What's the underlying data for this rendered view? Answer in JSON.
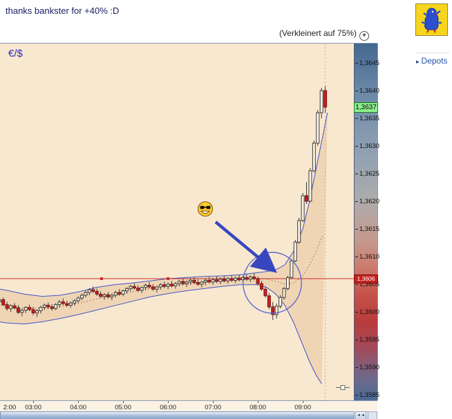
{
  "post": {
    "title": "thanks bankster for +40% :D"
  },
  "chart": {
    "zoom_note": "(Verkleinert auf 75%)",
    "zoom_icon_glyph": "+",
    "symbol": "€/$",
    "current_price_label": "1,3637",
    "hline_price_label": "1,3606"
  },
  "sidebar": {
    "depots_label": "Depots",
    "arrow_glyph": "▸"
  },
  "scrollbar": {
    "left_button_glyph": "◄◄",
    "right_button_glyph": "►►"
  },
  "chart_data": {
    "type": "candlestick",
    "title": "€/$",
    "base_price": 1.36,
    "pip_size": 0.0001,
    "interval_minutes": 5,
    "first_candle_hour": 2.0,
    "y_axis": {
      "min_label": "1,3585",
      "max_label": "1,3645",
      "labels": [
        {
          "text": "1,3645",
          "pips": 45
        },
        {
          "text": "1,3640",
          "pips": 40
        },
        {
          "text": "1,3635",
          "pips": 35
        },
        {
          "text": "1,3630",
          "pips": 30
        },
        {
          "text": "1,3625",
          "pips": 25
        },
        {
          "text": "1,3620",
          "pips": 20
        },
        {
          "text": "1,3615",
          "pips": 15
        },
        {
          "text": "1,3610",
          "pips": 10
        },
        {
          "text": "1,3605",
          "pips": 5
        },
        {
          "text": "1,3600",
          "pips": 0
        },
        {
          "text": "1,3595",
          "pips": -5
        },
        {
          "text": "1,3590",
          "pips": -10
        },
        {
          "text": "1,3585",
          "pips": -15
        }
      ]
    },
    "x_axis": {
      "labels": [
        {
          "text": "2:00",
          "hour": 2
        },
        {
          "text": "03:00",
          "hour": 3
        },
        {
          "text": "04:00",
          "hour": 4
        },
        {
          "text": "05:00",
          "hour": 5
        },
        {
          "text": "06:00",
          "hour": 6
        },
        {
          "text": "07:00",
          "hour": 7
        },
        {
          "text": "08:00",
          "hour": 8
        },
        {
          "text": "09:00",
          "hour": 9
        }
      ]
    },
    "current_price": {
      "label": "1,3637",
      "pips": 37
    },
    "hline": {
      "label": "1,3606",
      "pips": 6,
      "markers_hours": [
        4.52,
        6.0
      ]
    },
    "vline_hour": 9.5,
    "candles_format": "[open,high,low,close] in pips relative to base_price 1.3600",
    "candles": [
      [
        3.5,
        4.2,
        2.8,
        3.0
      ],
      [
        3.0,
        3.4,
        2.2,
        2.5
      ],
      [
        2.5,
        2.8,
        1.5,
        1.8
      ],
      [
        1.8,
        2.5,
        1.2,
        2.2
      ],
      [
        2.2,
        2.6,
        1.0,
        1.3
      ],
      [
        1.3,
        1.8,
        0.2,
        0.6
      ],
      [
        0.6,
        1.4,
        0.0,
        1.1
      ],
      [
        1.1,
        1.6,
        0.4,
        0.7
      ],
      [
        0.7,
        1.2,
        -0.4,
        -0.1
      ],
      [
        -0.1,
        0.6,
        -0.8,
        0.3
      ],
      [
        0.3,
        1.0,
        -0.2,
        0.8
      ],
      [
        0.8,
        1.3,
        0.1,
        0.4
      ],
      [
        0.4,
        0.9,
        -0.6,
        -0.2
      ],
      [
        -0.2,
        0.5,
        -0.9,
        0.2
      ],
      [
        0.2,
        1.1,
        -0.3,
        0.8
      ],
      [
        0.8,
        1.5,
        0.3,
        1.2
      ],
      [
        1.2,
        1.7,
        0.5,
        0.9
      ],
      [
        0.9,
        1.4,
        0.2,
        0.6
      ],
      [
        0.6,
        1.6,
        0.3,
        1.3
      ],
      [
        1.3,
        2.1,
        0.8,
        1.8
      ],
      [
        1.8,
        2.4,
        1.2,
        1.5
      ],
      [
        1.5,
        2.0,
        0.9,
        1.2
      ],
      [
        1.2,
        1.9,
        0.7,
        1.6
      ],
      [
        1.6,
        2.3,
        1.1,
        2.0
      ],
      [
        2.0,
        2.8,
        1.6,
        2.5
      ],
      [
        2.5,
        3.3,
        2.1,
        3.0
      ],
      [
        3.0,
        3.8,
        2.6,
        3.5
      ],
      [
        3.5,
        4.3,
        3.0,
        4.0
      ],
      [
        4.0,
        4.6,
        3.4,
        3.7
      ],
      [
        3.7,
        4.2,
        2.9,
        3.2
      ],
      [
        3.2,
        3.7,
        2.5,
        2.8
      ],
      [
        2.8,
        3.4,
        2.2,
        3.1
      ],
      [
        3.1,
        3.6,
        2.4,
        2.7
      ],
      [
        2.7,
        3.3,
        2.1,
        3.0
      ],
      [
        3.0,
        3.8,
        2.6,
        3.5
      ],
      [
        3.5,
        4.1,
        2.9,
        3.2
      ],
      [
        3.2,
        4.0,
        2.8,
        3.8
      ],
      [
        3.8,
        4.5,
        3.3,
        4.2
      ],
      [
        4.2,
        4.9,
        3.7,
        4.6
      ],
      [
        4.6,
        5.2,
        4.0,
        4.3
      ],
      [
        4.3,
        4.8,
        3.6,
        3.9
      ],
      [
        3.9,
        4.6,
        3.4,
        4.4
      ],
      [
        4.4,
        5.1,
        3.9,
        4.8
      ],
      [
        4.8,
        5.4,
        4.2,
        4.5
      ],
      [
        4.5,
        5.0,
        3.8,
        4.1
      ],
      [
        4.1,
        4.7,
        3.5,
        4.5
      ],
      [
        4.5,
        5.2,
        4.0,
        4.9
      ],
      [
        4.9,
        5.5,
        4.3,
        4.6
      ],
      [
        4.6,
        5.3,
        4.1,
        5.0
      ],
      [
        5.0,
        5.6,
        4.4,
        4.7
      ],
      [
        4.7,
        5.4,
        4.2,
        5.1
      ],
      [
        5.1,
        5.8,
        4.6,
        5.5
      ],
      [
        5.5,
        6.0,
        4.8,
        5.1
      ],
      [
        5.1,
        5.7,
        4.5,
        5.4
      ],
      [
        5.4,
        6.1,
        4.9,
        5.7
      ],
      [
        5.7,
        6.2,
        5.0,
        5.3
      ],
      [
        5.3,
        5.9,
        4.7,
        5.0
      ],
      [
        5.0,
        5.6,
        4.4,
        5.4
      ],
      [
        5.4,
        6.0,
        4.8,
        5.7
      ],
      [
        5.7,
        6.3,
        5.1,
        5.4
      ],
      [
        5.4,
        6.1,
        4.9,
        5.8
      ],
      [
        5.8,
        6.4,
        5.2,
        5.5
      ],
      [
        5.5,
        6.2,
        5.0,
        5.9
      ],
      [
        5.9,
        6.5,
        5.3,
        5.6
      ],
      [
        5.6,
        6.3,
        5.1,
        6.0
      ],
      [
        6.0,
        6.6,
        5.4,
        5.7
      ],
      [
        5.7,
        6.4,
        5.2,
        6.1
      ],
      [
        6.1,
        6.7,
        5.5,
        5.8
      ],
      [
        5.8,
        6.5,
        5.3,
        6.2
      ],
      [
        6.2,
        6.8,
        5.6,
        5.9
      ],
      [
        5.9,
        6.6,
        5.4,
        6.3
      ],
      [
        6.3,
        6.9,
        5.7,
        6.0
      ],
      [
        6.0,
        6.4,
        4.8,
        5.1
      ],
      [
        5.1,
        5.6,
        3.8,
        4.1
      ],
      [
        4.1,
        4.6,
        2.6,
        2.9
      ],
      [
        2.9,
        3.4,
        0.5,
        0.9
      ],
      [
        0.9,
        1.8,
        -1.5,
        -0.5
      ],
      [
        -0.5,
        1.5,
        -1.2,
        1.0
      ],
      [
        1.0,
        3.0,
        0.6,
        2.6
      ],
      [
        2.6,
        4.5,
        2.2,
        4.2
      ],
      [
        4.2,
        6.5,
        3.9,
        6.2
      ],
      [
        6.2,
        9.5,
        6.0,
        9.2
      ],
      [
        9.2,
        13.0,
        9.0,
        12.6
      ],
      [
        12.6,
        17.0,
        12.3,
        16.5
      ],
      [
        16.5,
        21.5,
        16.2,
        21.0
      ],
      [
        21.0,
        23.5,
        19.5,
        20.0
      ],
      [
        20.0,
        26.0,
        19.8,
        25.5
      ],
      [
        25.5,
        31.0,
        25.2,
        30.5
      ],
      [
        30.5,
        36.5,
        30.0,
        36.0
      ],
      [
        36.0,
        40.5,
        35.0,
        40.0
      ],
      [
        40.0,
        40.8,
        36.0,
        37.0
      ]
    ],
    "bollinger": {
      "upper": [
        [
          2.0,
          4.5
        ],
        [
          2.4,
          3.9
        ],
        [
          2.8,
          3.2
        ],
        [
          3.2,
          2.8
        ],
        [
          3.6,
          3.0
        ],
        [
          4.0,
          3.6
        ],
        [
          4.4,
          4.4
        ],
        [
          4.8,
          4.9
        ],
        [
          5.2,
          5.2
        ],
        [
          5.6,
          5.6
        ],
        [
          6.0,
          6.0
        ],
        [
          6.4,
          6.2
        ],
        [
          6.8,
          6.4
        ],
        [
          7.2,
          6.5
        ],
        [
          7.6,
          6.7
        ],
        [
          8.0,
          7.1
        ],
        [
          8.2,
          7.3
        ],
        [
          8.4,
          7.6
        ],
        [
          8.6,
          8.5
        ],
        [
          8.8,
          11
        ],
        [
          9.0,
          15
        ],
        [
          9.15,
          20
        ],
        [
          9.3,
          26
        ],
        [
          9.45,
          32
        ],
        [
          9.55,
          36
        ]
      ],
      "middle": [
        [
          2.0,
          1.5
        ],
        [
          2.4,
          1.1
        ],
        [
          2.8,
          0.7
        ],
        [
          3.2,
          0.6
        ],
        [
          3.6,
          0.9
        ],
        [
          4.0,
          1.5
        ],
        [
          4.4,
          2.3
        ],
        [
          4.8,
          3.0
        ],
        [
          5.2,
          3.6
        ],
        [
          5.6,
          4.2
        ],
        [
          6.0,
          4.7
        ],
        [
          6.4,
          5.0
        ],
        [
          6.8,
          5.3
        ],
        [
          7.2,
          5.6
        ],
        [
          7.6,
          5.8
        ],
        [
          8.0,
          6.0
        ],
        [
          8.2,
          5.9
        ],
        [
          8.4,
          5.5
        ],
        [
          8.6,
          5.0
        ],
        [
          8.8,
          5.2
        ],
        [
          9.0,
          6.5
        ],
        [
          9.15,
          8.5
        ],
        [
          9.3,
          11
        ],
        [
          9.45,
          14
        ]
      ],
      "lower": [
        [
          2.0,
          -1.5
        ],
        [
          2.4,
          -2.0
        ],
        [
          2.8,
          -2.2
        ],
        [
          3.2,
          -1.8
        ],
        [
          3.6,
          -1.2
        ],
        [
          4.0,
          -0.5
        ],
        [
          4.4,
          0.3
        ],
        [
          4.8,
          1.1
        ],
        [
          5.2,
          1.9
        ],
        [
          5.6,
          2.7
        ],
        [
          6.0,
          3.3
        ],
        [
          6.4,
          3.8
        ],
        [
          6.8,
          4.2
        ],
        [
          7.2,
          4.6
        ],
        [
          7.6,
          4.9
        ],
        [
          8.0,
          4.9
        ],
        [
          8.2,
          4.4
        ],
        [
          8.4,
          3.2
        ],
        [
          8.6,
          1.2
        ],
        [
          8.8,
          -2
        ],
        [
          9.0,
          -6
        ],
        [
          9.15,
          -9
        ],
        [
          9.3,
          -11.5
        ],
        [
          9.42,
          -13
        ]
      ]
    },
    "annotations": {
      "smiley": {
        "hour": 6.83,
        "pips": 18.6
      },
      "arrow": {
        "from": {
          "hour": 7.06,
          "pips": 16.25
        },
        "to": {
          "hour": 8.32,
          "pips": 7.75
        }
      },
      "circle": {
        "hour": 8.32,
        "pips": 5.25,
        "rx_hours": 0.65,
        "ry_pips": 5.5
      }
    },
    "colors": {
      "bg": "#f8e8d0",
      "band_fill": "#f0d5b4",
      "band_line": "#4053c8",
      "mid_line": "#8a6d4a",
      "up_fill": "#fcf4e4",
      "down_fill": "#c32222",
      "wick": "#3a3a3a",
      "hline": "#cc2a2a",
      "current_tag_bg": "#8df08d",
      "hline_tag_bg": "#c62020",
      "annotation_blue": "#3847c0",
      "smiley_yellow": "#ffcb2e"
    }
  }
}
